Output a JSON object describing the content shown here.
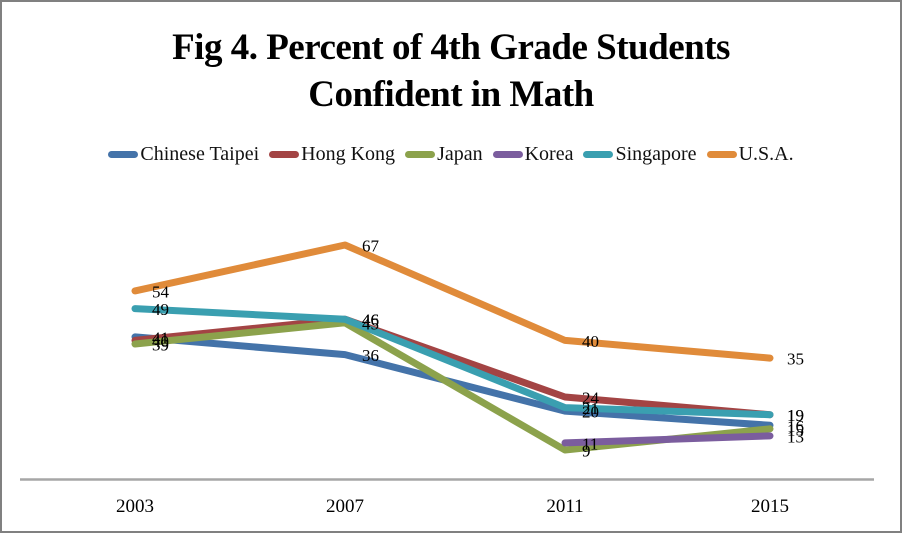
{
  "frame": {
    "border_color": "#808080",
    "background": "#ffffff"
  },
  "title": {
    "line1": "Fig 4. Percent of 4th Grade Students",
    "line2": "Confident in Math"
  },
  "chart_data": {
    "type": "line",
    "title": "Fig 4. Percent of 4th Grade Students Confident in Math",
    "categories": [
      "2003",
      "2007",
      "2011",
      "2015"
    ],
    "series": [
      {
        "name": "Chinese Taipei",
        "color": "#4473a9",
        "values": [
          41,
          36,
          20,
          16
        ]
      },
      {
        "name": "Hong Kong",
        "color": "#a34444",
        "values": [
          40,
          46,
          24,
          19
        ]
      },
      {
        "name": "Japan",
        "color": "#8ca24c",
        "values": [
          39,
          45,
          9,
          15
        ]
      },
      {
        "name": "Korea",
        "color": "#7b5d9e",
        "values": [
          null,
          null,
          11,
          13
        ]
      },
      {
        "name": "Singapore",
        "color": "#3a9fb0",
        "values": [
          49,
          46,
          21,
          19
        ]
      },
      {
        "name": "U.S.A.",
        "color": "#e08b3a",
        "values": [
          54,
          67,
          40,
          35
        ]
      }
    ],
    "data_labels": true,
    "legend_position": "top",
    "grid": false,
    "y_axis_visible": false,
    "ylim": [
      0,
      75
    ],
    "axis_line_color": "#a6a6a6",
    "label_color": "#000000"
  }
}
